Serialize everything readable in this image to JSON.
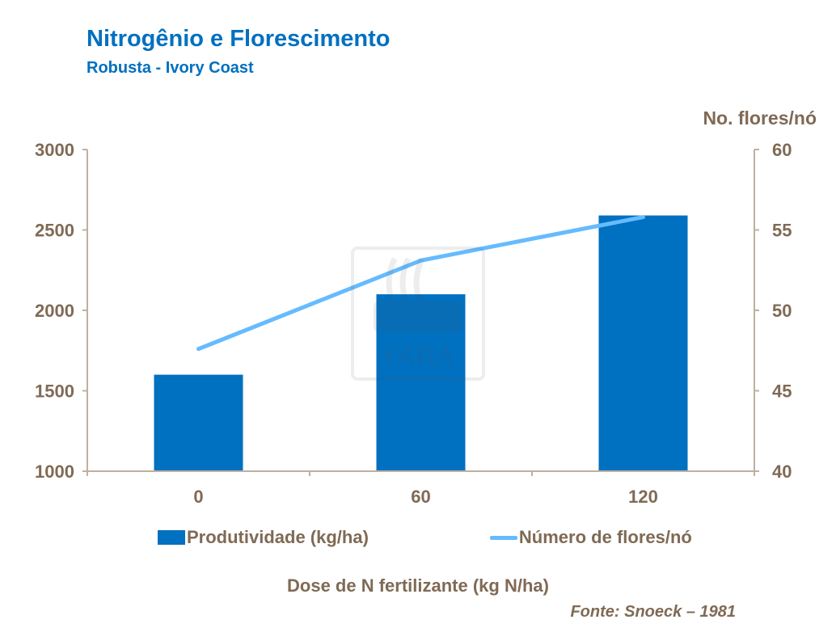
{
  "chart_data": {
    "type": "bar",
    "title": "Nitrogênio e Florescimento",
    "subtitle": "Robusta - Ivory Coast",
    "xlabel": "Dose de N fertilizante (kg N/ha)",
    "ylabel_right": "No. flores/nó",
    "categories": [
      "0",
      "60",
      "120"
    ],
    "ylim": [
      1000,
      3000
    ],
    "yticks": [
      "1000",
      "1500",
      "2000",
      "2500",
      "3000"
    ],
    "y2lim": [
      40,
      60
    ],
    "y2ticks": [
      "40",
      "45",
      "50",
      "55",
      "60"
    ],
    "series": [
      {
        "name": "Produtividade (kg/ha)",
        "type": "bar",
        "axis": "left",
        "values": [
          1600,
          2100,
          2590
        ],
        "color": "#0070C0"
      },
      {
        "name": "Número de flores/nó",
        "type": "line",
        "axis": "right",
        "values": [
          47.6,
          53.1,
          55.8
        ],
        "color": "#66BBFF"
      }
    ],
    "legend_position": "bottom",
    "grid": false,
    "source": "Fonte: Snoeck – 1981",
    "watermark": "YARA"
  }
}
